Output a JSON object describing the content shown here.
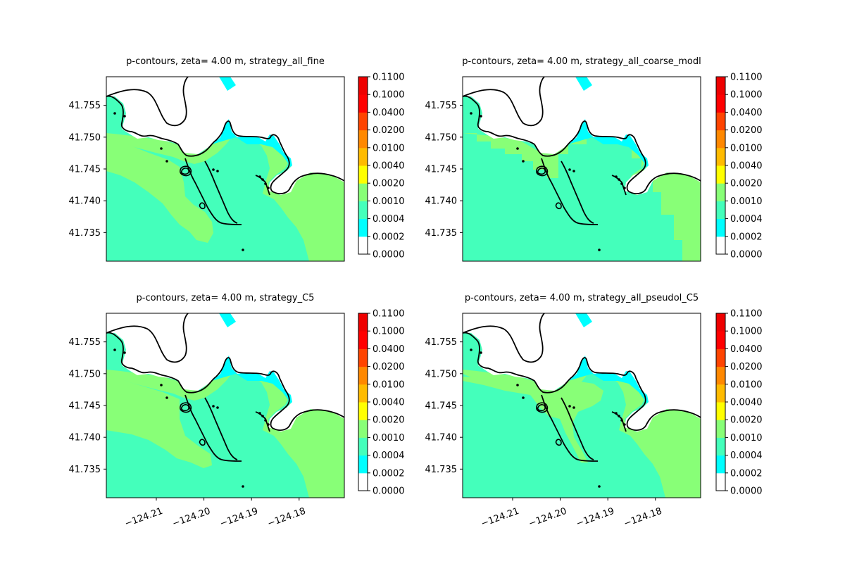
{
  "figure": {
    "background": "#ffffff"
  },
  "colormap": {
    "levels": [
      "0.0000",
      "0.0002",
      "0.0004",
      "0.0010",
      "0.0020",
      "0.0040",
      "0.0100",
      "0.0200",
      "0.0400",
      "0.1000",
      "0.1100"
    ],
    "colors": [
      "#ffffff",
      "#00ffff",
      "#44ffbb",
      "#88ff77",
      "#ffff00",
      "#ffbb00",
      "#ff8800",
      "#ff4400",
      "#ff0000",
      "#ee0000"
    ]
  },
  "chart_data": [
    {
      "type": "heatmap",
      "title": "p-contours, zeta= 4.00 m, strategy_all_fine",
      "xlabel": "",
      "ylabel": "",
      "xlim": [
        -124.2205,
        -124.1705
      ],
      "ylim": [
        41.7305,
        41.7595
      ],
      "x_ticks": [],
      "y_ticks": [
        "41.735",
        "41.740",
        "41.745",
        "41.750",
        "41.755"
      ],
      "colorbar_ticks": [
        "0.0000",
        "0.0002",
        "0.0004",
        "0.0010",
        "0.0020",
        "0.0040",
        "0.0100",
        "0.0200",
        "0.0400",
        "0.1000",
        "0.1100"
      ]
    },
    {
      "type": "heatmap",
      "title": "p-contours, zeta= 4.00 m, strategy_all_coarse_modl",
      "xlabel": "",
      "ylabel": "",
      "xlim": [
        -124.2205,
        -124.1705
      ],
      "ylim": [
        41.7305,
        41.7595
      ],
      "x_ticks": [],
      "y_ticks": [
        "41.735",
        "41.740",
        "41.745",
        "41.750",
        "41.755"
      ],
      "colorbar_ticks": [
        "0.0000",
        "0.0002",
        "0.0004",
        "0.0010",
        "0.0020",
        "0.0040",
        "0.0100",
        "0.0200",
        "0.0400",
        "0.1000",
        "0.1100"
      ]
    },
    {
      "type": "heatmap",
      "title": "p-contours, zeta= 4.00 m, strategy_C5",
      "xlabel": "",
      "ylabel": "",
      "xlim": [
        -124.2205,
        -124.1705
      ],
      "ylim": [
        41.7305,
        41.7595
      ],
      "x_ticks": [
        "−124.21",
        "−124.20",
        "−124.19",
        "−124.18"
      ],
      "y_ticks": [
        "41.735",
        "41.740",
        "41.745",
        "41.750",
        "41.755"
      ],
      "colorbar_ticks": [
        "0.0000",
        "0.0002",
        "0.0004",
        "0.0010",
        "0.0020",
        "0.0040",
        "0.0100",
        "0.0200",
        "0.0400",
        "0.1000",
        "0.1100"
      ]
    },
    {
      "type": "heatmap",
      "title": "p-contours, zeta= 4.00 m, strategy_all_pseudol_C5",
      "xlabel": "",
      "ylabel": "",
      "xlim": [
        -124.2205,
        -124.1705
      ],
      "ylim": [
        41.7305,
        41.7595
      ],
      "x_ticks": [
        "−124.21",
        "−124.20",
        "−124.19",
        "−124.18"
      ],
      "y_ticks": [
        "41.735",
        "41.740",
        "41.745",
        "41.750",
        "41.755"
      ],
      "colorbar_ticks": [
        "0.0000",
        "0.0002",
        "0.0004",
        "0.0010",
        "0.0020",
        "0.0040",
        "0.0100",
        "0.0200",
        "0.0400",
        "0.1000",
        "0.1100"
      ]
    }
  ]
}
